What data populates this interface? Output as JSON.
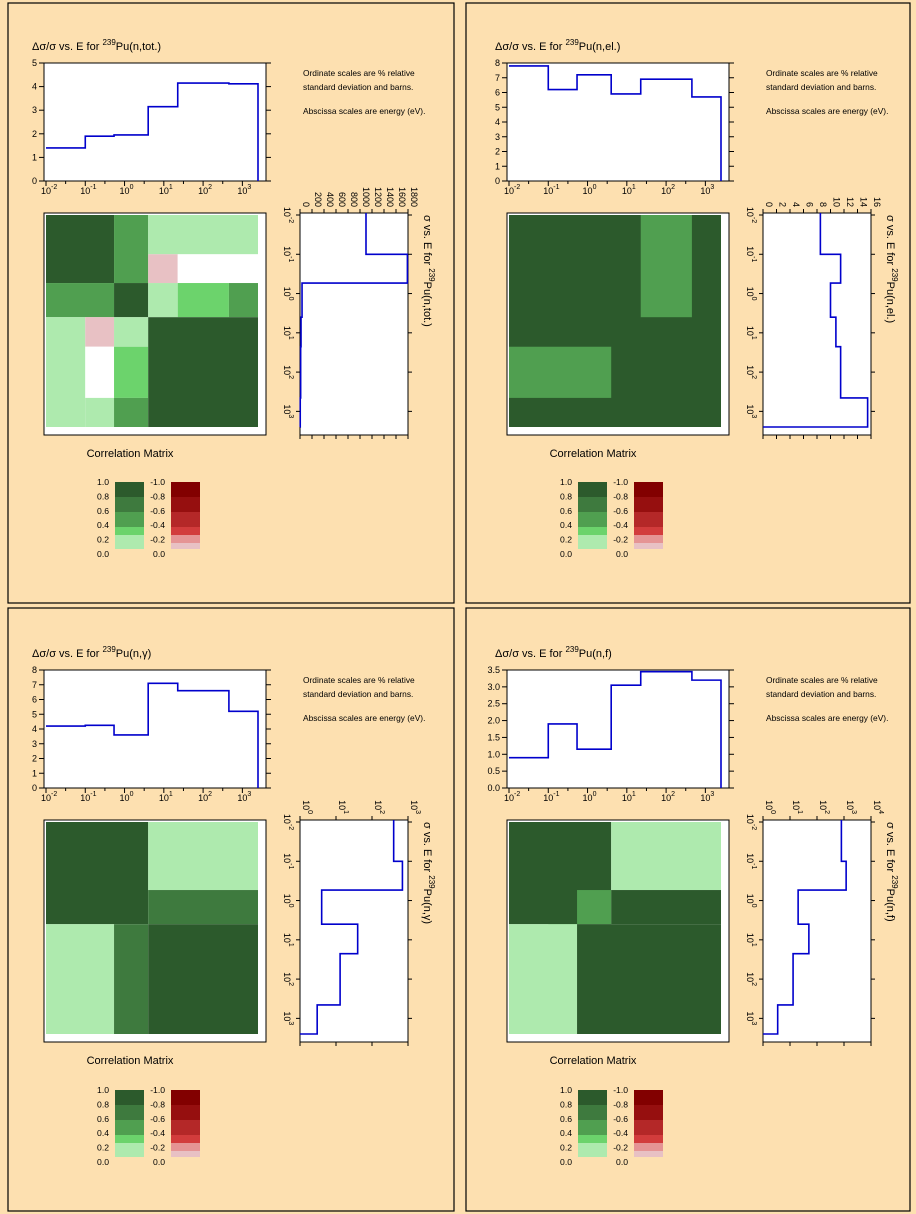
{
  "page": {
    "bg_color": "#fde0b0",
    "frame_color": "#000000",
    "correlation_label": "Correlation Matrix",
    "notes": [
      "Ordinate scales are % relative",
      "standard deviation and barns.",
      "Abscissa scales are energy (eV)."
    ],
    "colors": {
      "pos": [
        "#aeeaae",
        "#6cd36c",
        "#509f50",
        "#3e7a3e",
        "#2c5a2c",
        "#2c5a2c"
      ],
      "neg": [
        "#e8c1c4",
        "#e59494",
        "#d23c3c",
        "#b42828",
        "#960f0f",
        "#820000"
      ],
      "white": "#ffffff",
      "line": "#0000cc"
    },
    "legend": {
      "pos_labels": [
        "1.0",
        "0.8",
        "0.6",
        "0.4",
        "0.2",
        "0.0"
      ],
      "neg_labels": [
        "-1.0",
        "-0.8",
        "-0.6",
        "-0.4",
        "-0.2",
        "0.0"
      ]
    }
  },
  "chart_data": [
    {
      "type": "line",
      "reaction": "(n,tot.)",
      "title_pre": "Δσ/σ vs. E for ",
      "title_sup": "239",
      "title_post": "Pu(n,tot.)",
      "side_pre": "σ vs. E for ",
      "side_sup": "239",
      "side_post": "Pu(n,tot.)",
      "energy_edges": [
        0.01,
        0.1,
        0.54,
        4,
        22.6,
        454,
        2500
      ],
      "unc_values": [
        1.4,
        1.9,
        1.95,
        3.15,
        4.15,
        4.12
      ],
      "unc_ylim": [
        0,
        5
      ],
      "unc_ticks": [
        "0",
        "1",
        "2",
        "3",
        "4",
        "5"
      ],
      "xticks": [
        "-2",
        "-1",
        "0",
        "1",
        "2",
        "3"
      ],
      "xsc": "log",
      "xs_values": [
        1100,
        1790,
        34,
        17,
        11,
        4
      ],
      "xs_scale": "linear",
      "xs_lim": [
        0,
        1800
      ],
      "xs_ticks": [
        "0",
        "200",
        "400",
        "600",
        "800",
        "1000",
        "1200",
        "1400",
        "1600",
        "1800"
      ],
      "xs_tick_pow": [],
      "corr_blocks": [
        {
          "r": [
            0,
            2
          ],
          "c": [
            0,
            2
          ],
          "v": 1.0
        },
        {
          "r": [
            0,
            2
          ],
          "c": [
            2,
            3
          ],
          "v": 0.5
        },
        {
          "r": [
            0,
            1
          ],
          "c": [
            3,
            6
          ],
          "v": 0.1
        },
        {
          "r": [
            1,
            2
          ],
          "c": [
            3,
            4
          ],
          "v": -0.1
        },
        {
          "r": [
            1,
            2
          ],
          "c": [
            4,
            6
          ],
          "v": 0.0
        },
        {
          "r": [
            2,
            3
          ],
          "c": [
            0,
            2
          ],
          "v": 0.5
        },
        {
          "r": [
            2,
            3
          ],
          "c": [
            2,
            3
          ],
          "v": 1.0
        },
        {
          "r": [
            2,
            3
          ],
          "c": [
            3,
            4
          ],
          "v": 0.1
        },
        {
          "r": [
            2,
            3
          ],
          "c": [
            4,
            5
          ],
          "v": 0.3
        },
        {
          "r": [
            2,
            3
          ],
          "c": [
            5,
            6
          ],
          "v": 0.5
        },
        {
          "r": [
            3,
            6
          ],
          "c": [
            0,
            1
          ],
          "v": 0.1
        },
        {
          "r": [
            3,
            4
          ],
          "c": [
            1,
            2
          ],
          "v": -0.1
        },
        {
          "r": [
            4,
            5
          ],
          "c": [
            1,
            2
          ],
          "v": 0.0
        },
        {
          "r": [
            5,
            6
          ],
          "c": [
            1,
            2
          ],
          "v": 0.1
        },
        {
          "r": [
            3,
            4
          ],
          "c": [
            2,
            3
          ],
          "v": 0.1
        },
        {
          "r": [
            4,
            5
          ],
          "c": [
            2,
            3
          ],
          "v": 0.3
        },
        {
          "r": [
            5,
            6
          ],
          "c": [
            2,
            3
          ],
          "v": 0.5
        },
        {
          "r": [
            3,
            6
          ],
          "c": [
            3,
            6
          ],
          "v": 1.0
        }
      ]
    },
    {
      "type": "line",
      "reaction": "(n,el.)",
      "title_pre": "Δσ/σ vs. E for ",
      "title_sup": "239",
      "title_post": "Pu(n,el.)",
      "side_pre": "σ vs. E for ",
      "side_sup": "239",
      "side_post": "Pu(n,el.)",
      "energy_edges": [
        0.01,
        0.1,
        0.54,
        4,
        22.6,
        454,
        2500
      ],
      "unc_values": [
        7.8,
        6.2,
        7.2,
        5.9,
        6.9,
        5.7
      ],
      "unc_ylim": [
        0,
        8
      ],
      "unc_ticks": [
        "0",
        "1",
        "2",
        "3",
        "4",
        "5",
        "6",
        "7",
        "8"
      ],
      "xticks": [
        "-2",
        "-1",
        "0",
        "1",
        "2",
        "3"
      ],
      "xs_values": [
        8.5,
        11.5,
        10,
        10.8,
        11.5,
        15.5,
        14.6
      ],
      "xs_scale": "linear",
      "xs_lim": [
        0,
        16
      ],
      "xs_ticks": [
        "0",
        "2",
        "4",
        "6",
        "8",
        "10",
        "12",
        "14",
        "16"
      ],
      "xs_tick_pow": [],
      "corr_blocks": [
        {
          "r": [
            0,
            6
          ],
          "c": [
            0,
            6
          ],
          "v": 1.0
        },
        {
          "r": [
            0,
            3
          ],
          "c": [
            4,
            5
          ],
          "v": 0.5
        },
        {
          "r": [
            4,
            5
          ],
          "c": [
            0,
            3
          ],
          "v": 0.5
        }
      ]
    },
    {
      "type": "line",
      "reaction": "(n,γ)",
      "title_pre": "Δσ/σ vs. E for ",
      "title_sup": "239",
      "title_post": "Pu(n,γ)",
      "side_pre": "σ vs. E for ",
      "side_sup": "239",
      "side_post": "Pu(n,γ)",
      "energy_edges": [
        0.01,
        0.1,
        0.54,
        4,
        22.6,
        454,
        2500
      ],
      "unc_values": [
        4.2,
        4.25,
        3.6,
        7.1,
        6.6,
        5.2
      ],
      "unc_ylim": [
        0,
        8
      ],
      "unc_ticks": [
        "0",
        "1",
        "2",
        "3",
        "4",
        "5",
        "6",
        "7",
        "8"
      ],
      "xticks": [
        "-2",
        "-1",
        "0",
        "1",
        "2",
        "3"
      ],
      "xs_values": [
        400,
        700,
        4,
        40,
        13,
        3,
        1
      ],
      "xs_scale": "log",
      "xs_lim": [
        1,
        1000
      ],
      "xs_ticks": [
        "0",
        "1",
        "2",
        "3"
      ],
      "xs_tick_pow": [
        true
      ],
      "corr_blocks": [
        {
          "r": [
            0,
            3
          ],
          "c": [
            0,
            3
          ],
          "v": 1.0
        },
        {
          "r": [
            0,
            2
          ],
          "c": [
            3,
            6
          ],
          "v": 0.1
        },
        {
          "r": [
            2,
            3
          ],
          "c": [
            3,
            6
          ],
          "v": 0.7
        },
        {
          "r": [
            3,
            6
          ],
          "c": [
            0,
            2
          ],
          "v": 0.1
        },
        {
          "r": [
            3,
            6
          ],
          "c": [
            2,
            3
          ],
          "v": 0.7
        },
        {
          "r": [
            3,
            6
          ],
          "c": [
            3,
            6
          ],
          "v": 1.0
        }
      ]
    },
    {
      "type": "line",
      "reaction": "(n,f)",
      "title_pre": "Δσ/σ vs. E for ",
      "title_sup": "239",
      "title_post": "Pu(n,f)",
      "side_pre": "σ vs. E for ",
      "side_sup": "239",
      "side_post": "Pu(n,f)",
      "energy_edges": [
        0.01,
        0.1,
        0.54,
        4,
        22.6,
        454,
        2500
      ],
      "unc_values": [
        0.9,
        1.9,
        1.15,
        3.05,
        3.45,
        3.2
      ],
      "unc_ylim": [
        0,
        3.5
      ],
      "unc_ticks": [
        "0.0",
        "0.5",
        "1.0",
        "1.5",
        "2.0",
        "2.5",
        "3.0",
        "3.5"
      ],
      "xticks": [
        "-2",
        "-1",
        "0",
        "1",
        "2",
        "3"
      ],
      "xs_values": [
        800,
        1200,
        20,
        50,
        13,
        3.5,
        1
      ],
      "xs_scale": "log",
      "xs_lim": [
        1,
        10000
      ],
      "xs_ticks": [
        "0",
        "1",
        "2",
        "3",
        "4"
      ],
      "xs_tick_pow": [
        true
      ],
      "corr_blocks": [
        {
          "r": [
            0,
            3
          ],
          "c": [
            0,
            3
          ],
          "v": 1.0
        },
        {
          "r": [
            0,
            2
          ],
          "c": [
            3,
            6
          ],
          "v": 0.1
        },
        {
          "r": [
            2,
            3
          ],
          "c": [
            3,
            6
          ],
          "v": 1.0
        },
        {
          "r": [
            2,
            3
          ],
          "c": [
            2,
            3
          ],
          "v": 0.5
        },
        {
          "r": [
            3,
            4
          ],
          "c": [
            1,
            2
          ],
          "v": 0.5
        },
        {
          "r": [
            3,
            6
          ],
          "c": [
            0,
            2
          ],
          "v": 0.1
        },
        {
          "r": [
            3,
            6
          ],
          "c": [
            2,
            6
          ],
          "v": 1.0
        }
      ]
    }
  ]
}
